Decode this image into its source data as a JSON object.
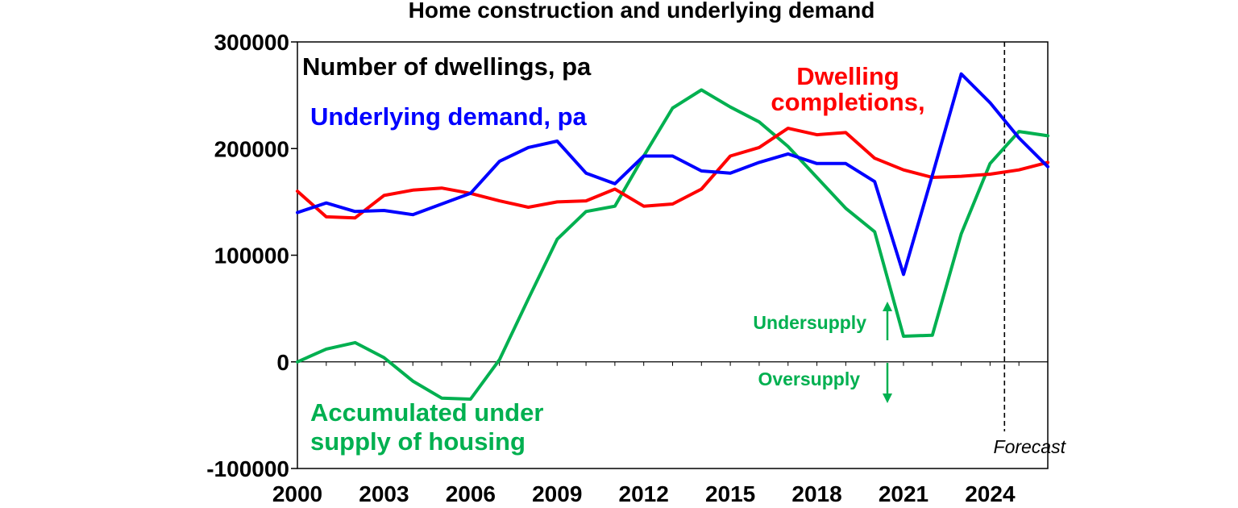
{
  "chart_data": {
    "type": "line",
    "title": "Home construction and underlying demand",
    "ylabel": "Number of dwellings, pa",
    "xlabel": "",
    "ylim": [
      -100000,
      300000
    ],
    "xlim": [
      2000,
      2026
    ],
    "yticks": [
      -100000,
      0,
      100000,
      200000,
      300000
    ],
    "xticks": [
      2000,
      2003,
      2006,
      2009,
      2012,
      2015,
      2018,
      2021,
      2024
    ],
    "grid": false,
    "x": [
      2000,
      2001,
      2002,
      2003,
      2004,
      2005,
      2006,
      2007,
      2008,
      2009,
      2010,
      2011,
      2012,
      2013,
      2014,
      2015,
      2016,
      2017,
      2018,
      2019,
      2020,
      2021,
      2022,
      2023,
      2024,
      2025,
      2026
    ],
    "series": [
      {
        "name": "Underlying demand, pa",
        "color": "#0000ff",
        "values": [
          140000,
          149000,
          141000,
          142000,
          138000,
          148000,
          158000,
          188000,
          201000,
          207000,
          177000,
          167000,
          193000,
          193000,
          179000,
          177000,
          187000,
          195000,
          186000,
          186000,
          169000,
          82000,
          175000,
          270000,
          243000,
          210000,
          183000
        ]
      },
      {
        "name": "Dwelling completions,",
        "color": "#ff0000",
        "values": [
          160000,
          136000,
          135000,
          156000,
          161000,
          163000,
          158000,
          151000,
          145000,
          150000,
          151000,
          162000,
          146000,
          148000,
          162000,
          193000,
          201000,
          219000,
          213000,
          215000,
          191000,
          180000,
          173000,
          174000,
          176000,
          180000,
          187000
        ]
      },
      {
        "name": "Accumulated under supply of housing",
        "color": "#00b050",
        "values": [
          0,
          12000,
          18000,
          4000,
          -18000,
          -34000,
          -35000,
          2000,
          59000,
          115000,
          141000,
          146000,
          193000,
          238000,
          255000,
          239000,
          225000,
          202000,
          173000,
          144000,
          122000,
          24000,
          25000,
          120000,
          186000,
          216000,
          212000
        ]
      }
    ],
    "annotations": {
      "undersupply": "Undersupply",
      "oversupply": "Oversupply",
      "forecast": "Forecast",
      "forecast_x": 2024.5
    }
  }
}
